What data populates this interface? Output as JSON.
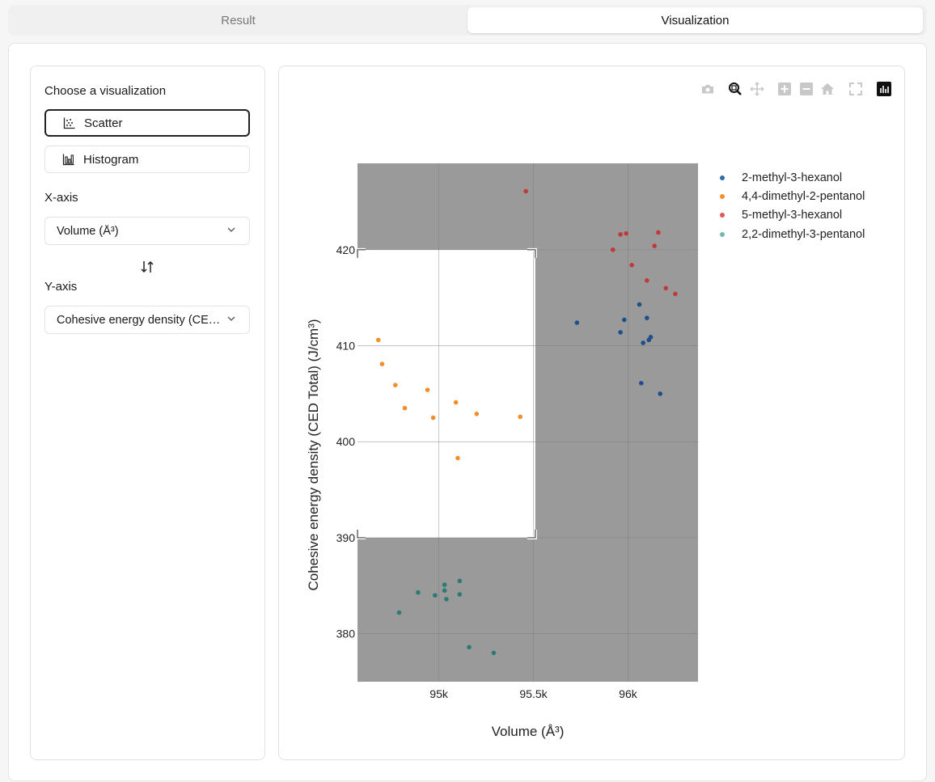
{
  "tabs": {
    "result": "Result",
    "visualization": "Visualization"
  },
  "sidebar": {
    "title": "Choose a visualization",
    "options": [
      {
        "label": "Scatter",
        "icon": "scatter-icon",
        "selected": true
      },
      {
        "label": "Histogram",
        "icon": "histogram-icon",
        "selected": false
      }
    ],
    "x_axis_label": "X-axis",
    "x_axis_value": "Volume (Å³)",
    "y_axis_label": "Y-axis",
    "y_axis_value": "Cohesive energy density (CE…"
  },
  "modebar": [
    "camera-icon",
    "zoom-icon",
    "pan-icon",
    "zoom-in-icon",
    "zoom-out-icon",
    "home-icon",
    "autoscale-icon",
    "plotly-logo-icon"
  ],
  "chart_data": {
    "type": "scatter",
    "xlabel": "Volume (Å³)",
    "ylabel": "Cohesive energy density (CED Total) (J/cm³)",
    "xlim": [
      94570,
      96370
    ],
    "ylim": [
      375,
      429
    ],
    "xticks": [
      95000,
      95500,
      96000
    ],
    "xticklabels": [
      "95k",
      "95.5k",
      "96k"
    ],
    "yticks": [
      380,
      390,
      400,
      410,
      420
    ],
    "yticklabels": [
      "380",
      "390",
      "400",
      "410",
      "420"
    ],
    "grid": true,
    "legend_position": "right",
    "selection_box": {
      "x": [
        94570,
        95510
      ],
      "y": [
        390,
        420
      ]
    },
    "series": [
      {
        "name": "2-methyl-3-hexanol",
        "color": "#1f4e8c",
        "points": [
          [
            95730,
            412.4
          ],
          [
            95960,
            411.4
          ],
          [
            95980,
            412.7
          ],
          [
            96060,
            414.3
          ],
          [
            96100,
            412.9
          ],
          [
            96080,
            410.3
          ],
          [
            96110,
            410.6
          ],
          [
            96120,
            410.9
          ],
          [
            96070,
            406.1
          ],
          [
            96170,
            405.0
          ]
        ]
      },
      {
        "name": "4,4-dimethyl-2-pentanol",
        "color": "#f28e2b",
        "points": [
          [
            94680,
            410.6
          ],
          [
            94700,
            408.1
          ],
          [
            94770,
            405.9
          ],
          [
            94820,
            403.5
          ],
          [
            94940,
            405.4
          ],
          [
            94970,
            402.5
          ],
          [
            95090,
            404.1
          ],
          [
            95200,
            402.9
          ],
          [
            95100,
            398.3
          ],
          [
            95430,
            402.6
          ]
        ]
      },
      {
        "name": "5-methyl-3-hexanol",
        "color": "#c0393b",
        "points": [
          [
            95460,
            426.1
          ],
          [
            95920,
            420.0
          ],
          [
            95960,
            421.6
          ],
          [
            95990,
            421.7
          ],
          [
            96020,
            418.4
          ],
          [
            96140,
            420.4
          ],
          [
            96160,
            421.8
          ],
          [
            96100,
            416.8
          ],
          [
            96200,
            416.0
          ],
          [
            96250,
            415.4
          ]
        ]
      },
      {
        "name": "2,2-dimethyl-3-pentanol",
        "color": "#2f7a74",
        "points": [
          [
            94790,
            382.2
          ],
          [
            94890,
            384.3
          ],
          [
            94980,
            384.0
          ],
          [
            95030,
            384.5
          ],
          [
            95030,
            385.1
          ],
          [
            95040,
            383.6
          ],
          [
            95110,
            385.5
          ],
          [
            95110,
            384.1
          ],
          [
            95160,
            378.6
          ],
          [
            95290,
            378.0
          ]
        ]
      }
    ]
  }
}
